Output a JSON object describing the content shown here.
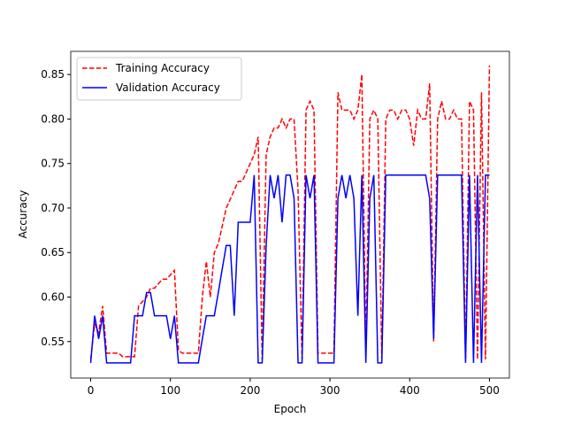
{
  "chart_data": {
    "type": "line",
    "xlabel": "Epoch",
    "ylabel": "Accuracy",
    "x": [
      0,
      5,
      10,
      15,
      20,
      25,
      30,
      35,
      40,
      45,
      50,
      55,
      60,
      65,
      70,
      75,
      80,
      85,
      90,
      95,
      100,
      105,
      110,
      115,
      120,
      125,
      130,
      135,
      140,
      145,
      150,
      155,
      160,
      165,
      170,
      175,
      180,
      185,
      190,
      195,
      200,
      205,
      210,
      215,
      220,
      225,
      230,
      235,
      240,
      245,
      250,
      255,
      260,
      265,
      270,
      275,
      280,
      285,
      290,
      295,
      300,
      305,
      310,
      315,
      320,
      325,
      330,
      335,
      340,
      345,
      350,
      355,
      360,
      365,
      370,
      375,
      380,
      385,
      390,
      395,
      400,
      405,
      410,
      415,
      420,
      425,
      430,
      435,
      440,
      445,
      450,
      455,
      460,
      465,
      470,
      475,
      480,
      485,
      490,
      495,
      500
    ],
    "series": [
      {
        "name": "Training Accuracy",
        "color": "#ff0000",
        "dashed": true,
        "values": [
          0.53,
          0.57,
          0.56,
          0.59,
          0.537,
          0.537,
          0.537,
          0.537,
          0.533,
          0.533,
          0.533,
          0.533,
          0.59,
          0.595,
          0.6,
          0.61,
          0.61,
          0.615,
          0.62,
          0.62,
          0.625,
          0.63,
          0.54,
          0.537,
          0.537,
          0.537,
          0.537,
          0.537,
          0.6,
          0.64,
          0.6,
          0.65,
          0.66,
          0.68,
          0.7,
          0.71,
          0.72,
          0.73,
          0.73,
          0.74,
          0.75,
          0.76,
          0.78,
          0.53,
          0.76,
          0.78,
          0.79,
          0.79,
          0.8,
          0.79,
          0.8,
          0.8,
          0.72,
          0.53,
          0.81,
          0.82,
          0.81,
          0.537,
          0.537,
          0.537,
          0.537,
          0.537,
          0.83,
          0.81,
          0.81,
          0.81,
          0.8,
          0.81,
          0.85,
          0.54,
          0.8,
          0.81,
          0.8,
          0.53,
          0.8,
          0.81,
          0.81,
          0.8,
          0.81,
          0.81,
          0.8,
          0.77,
          0.81,
          0.8,
          0.8,
          0.84,
          0.55,
          0.8,
          0.82,
          0.8,
          0.8,
          0.81,
          0.8,
          0.8,
          0.53,
          0.82,
          0.81,
          0.53,
          0.83,
          0.53,
          0.86
        ]
      },
      {
        "name": "Validation Accuracy",
        "color": "#0000ff",
        "dashed": false,
        "values": [
          0.526,
          0.579,
          0.553,
          0.579,
          0.526,
          0.526,
          0.526,
          0.526,
          0.526,
          0.526,
          0.526,
          0.579,
          0.579,
          0.579,
          0.605,
          0.605,
          0.579,
          0.579,
          0.579,
          0.579,
          0.553,
          0.579,
          0.526,
          0.526,
          0.526,
          0.526,
          0.526,
          0.526,
          0.553,
          0.579,
          0.579,
          0.579,
          0.605,
          0.632,
          0.658,
          0.658,
          0.579,
          0.684,
          0.684,
          0.684,
          0.684,
          0.737,
          0.526,
          0.526,
          0.658,
          0.737,
          0.711,
          0.737,
          0.684,
          0.737,
          0.737,
          0.711,
          0.526,
          0.526,
          0.737,
          0.711,
          0.737,
          0.526,
          0.526,
          0.526,
          0.526,
          0.526,
          0.711,
          0.737,
          0.711,
          0.737,
          0.711,
          0.579,
          0.737,
          0.526,
          0.711,
          0.737,
          0.526,
          0.526,
          0.737,
          0.737,
          0.737,
          0.737,
          0.737,
          0.737,
          0.737,
          0.737,
          0.737,
          0.737,
          0.737,
          0.711,
          0.553,
          0.737,
          0.737,
          0.737,
          0.737,
          0.737,
          0.737,
          0.737,
          0.526,
          0.737,
          0.526,
          0.737,
          0.526,
          0.737,
          0.737
        ]
      }
    ],
    "xlim": [
      -25,
      525
    ],
    "xticks": [
      0,
      100,
      200,
      300,
      400,
      500
    ],
    "ylim": [
      0.509,
      0.876
    ],
    "yticks": [
      0.55,
      {
        "value": 0.6,
        "label": "0.60"
      },
      0.65,
      {
        "value": 0.7,
        "label": "0.70"
      },
      0.75,
      {
        "value": 0.8,
        "label": "0.80"
      },
      0.85
    ],
    "legend": "upper left"
  }
}
